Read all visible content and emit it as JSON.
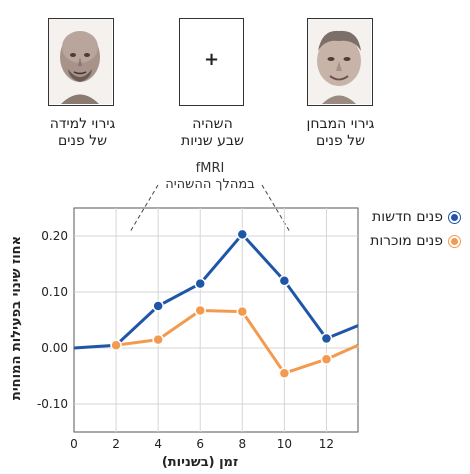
{
  "stimuli": {
    "left_caption_line1": "גירוי למידה",
    "left_caption_line2": "של פנים",
    "middle_symbol": "+",
    "middle_caption_line1": "השהיה",
    "middle_caption_line2": "שבע שניות",
    "right_caption_line1": "גירוי המבחן",
    "right_caption_line2": "של פנים",
    "left_face_icon": "bald-man-face-photo",
    "right_face_icon": "man-face-photo"
  },
  "fmri": {
    "line1": "fMRI",
    "line2": "במהלך ההשהיה"
  },
  "chart_data": {
    "type": "line",
    "xlabel": "זמן (בשניות)",
    "ylabel": "אחוז שינוי בפעילות המוחית",
    "x_ticks": [
      0,
      2,
      4,
      6,
      8,
      10,
      12
    ],
    "y_ticks": [
      "0.20",
      "0.10",
      "0.00",
      "-0.10"
    ],
    "xlim": [
      0,
      13.5
    ],
    "ylim": [
      -0.15,
      0.25
    ],
    "grid": true,
    "legend_position": "top-right",
    "series": [
      {
        "name": "פנים חדשות",
        "color": "#1f56a7",
        "x": [
          0,
          2,
          4,
          6,
          8,
          10,
          12,
          13.5
        ],
        "y": [
          0.0,
          0.005,
          0.075,
          0.115,
          0.203,
          0.12,
          0.017,
          0.04
        ],
        "marker_x": [
          2,
          4,
          6,
          8,
          10,
          12
        ]
      },
      {
        "name": "פנים מוכרות",
        "color": "#f39a4f",
        "x": [
          2,
          4,
          6,
          8,
          10,
          12,
          13.5
        ],
        "y": [
          0.005,
          0.015,
          0.067,
          0.065,
          -0.045,
          -0.02,
          0.005
        ],
        "marker_x": [
          2,
          4,
          6,
          8,
          10,
          12
        ]
      }
    ]
  }
}
